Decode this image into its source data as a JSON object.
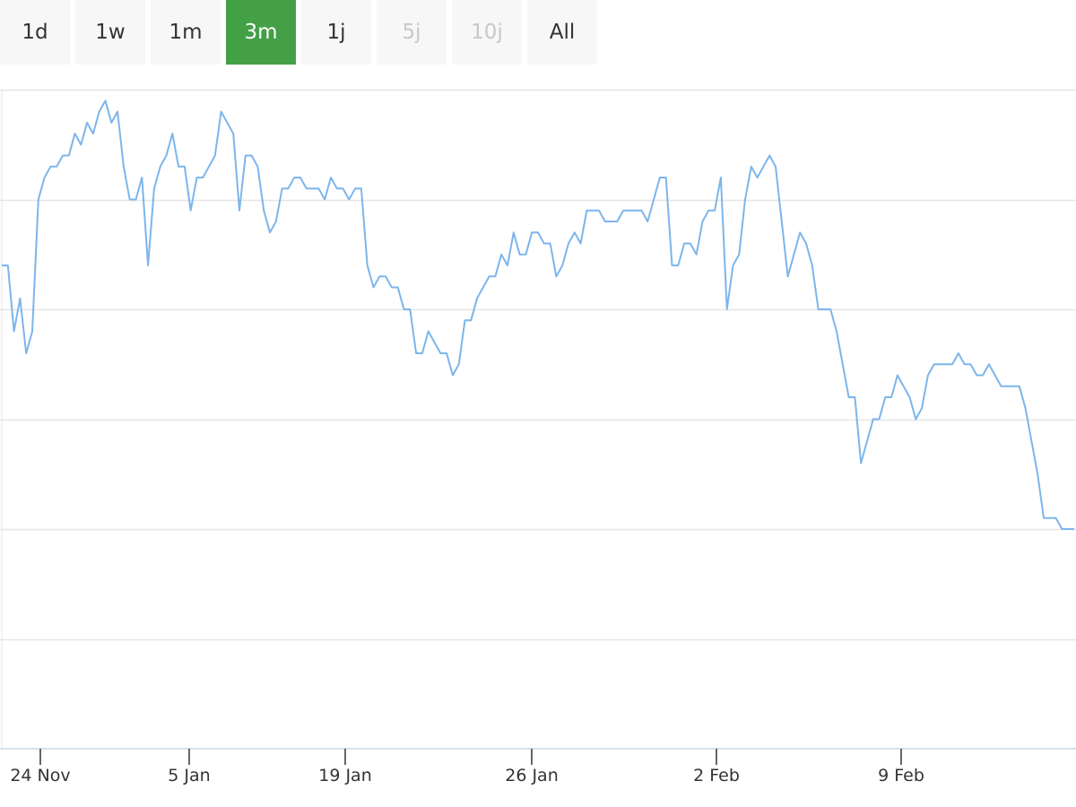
{
  "range_selector": {
    "buttons": [
      {
        "label": "1d",
        "state": "normal"
      },
      {
        "label": "1w",
        "state": "normal"
      },
      {
        "label": "1m",
        "state": "normal"
      },
      {
        "label": "3m",
        "state": "active"
      },
      {
        "label": "1j",
        "state": "normal"
      },
      {
        "label": "5j",
        "state": "disabled"
      },
      {
        "label": "10j",
        "state": "disabled"
      },
      {
        "label": "All",
        "state": "normal"
      }
    ],
    "active_color": "#43a047"
  },
  "chart_data": {
    "type": "line",
    "title": "",
    "xlabel": "",
    "ylabel": "",
    "x_tick_labels": [
      "24 Nov",
      "5 Jan",
      "19 Jan",
      "26 Jan",
      "2 Feb",
      "9 Feb"
    ],
    "y_tick_labels_visible": false,
    "grid": true,
    "ylim": [
      0,
      6
    ],
    "series": [
      {
        "color": "#7cb5ec",
        "values": [
          4.4,
          4.4,
          3.8,
          4.1,
          3.6,
          3.8,
          5.0,
          5.2,
          5.3,
          5.3,
          5.4,
          5.4,
          5.6,
          5.5,
          5.7,
          5.6,
          5.8,
          5.9,
          5.7,
          5.8,
          5.3,
          5.0,
          5.0,
          5.2,
          4.4,
          5.1,
          5.3,
          5.4,
          5.6,
          5.3,
          5.3,
          4.9,
          5.2,
          5.2,
          5.3,
          5.4,
          5.8,
          5.7,
          5.6,
          4.9,
          5.4,
          5.4,
          5.3,
          4.9,
          4.7,
          4.8,
          5.1,
          5.1,
          5.2,
          5.2,
          5.1,
          5.1,
          5.1,
          5.0,
          5.2,
          5.1,
          5.1,
          5.0,
          5.1,
          5.1,
          4.4,
          4.2,
          4.3,
          4.3,
          4.2,
          4.2,
          4.0,
          4.0,
          3.6,
          3.6,
          3.8,
          3.7,
          3.6,
          3.6,
          3.4,
          3.5,
          3.9,
          3.9,
          4.1,
          4.2,
          4.3,
          4.3,
          4.5,
          4.4,
          4.7,
          4.5,
          4.5,
          4.7,
          4.7,
          4.6,
          4.6,
          4.3,
          4.4,
          4.6,
          4.7,
          4.6,
          4.9,
          4.9,
          4.9,
          4.8,
          4.8,
          4.8,
          4.9,
          4.9,
          4.9,
          4.9,
          4.8,
          5.0,
          5.2,
          5.2,
          4.4,
          4.4,
          4.6,
          4.6,
          4.5,
          4.8,
          4.9,
          4.9,
          5.2,
          4.0,
          4.4,
          4.5,
          5.0,
          5.3,
          5.2,
          5.3,
          5.4,
          5.3,
          4.8,
          4.3,
          4.5,
          4.7,
          4.6,
          4.4,
          4.0,
          4.0,
          4.0,
          3.8,
          3.5,
          3.2,
          3.2,
          2.6,
          2.8,
          3.0,
          3.0,
          3.2,
          3.2,
          3.4,
          3.3,
          3.2,
          3.0,
          3.1,
          3.4,
          3.5,
          3.5,
          3.5,
          3.5,
          3.6,
          3.5,
          3.5,
          3.4,
          3.4,
          3.5,
          3.4,
          3.3,
          3.3,
          3.3,
          3.3,
          3.1,
          2.8,
          2.5,
          2.1,
          2.1,
          2.1,
          2.0,
          2.0,
          2.0
        ]
      }
    ]
  }
}
